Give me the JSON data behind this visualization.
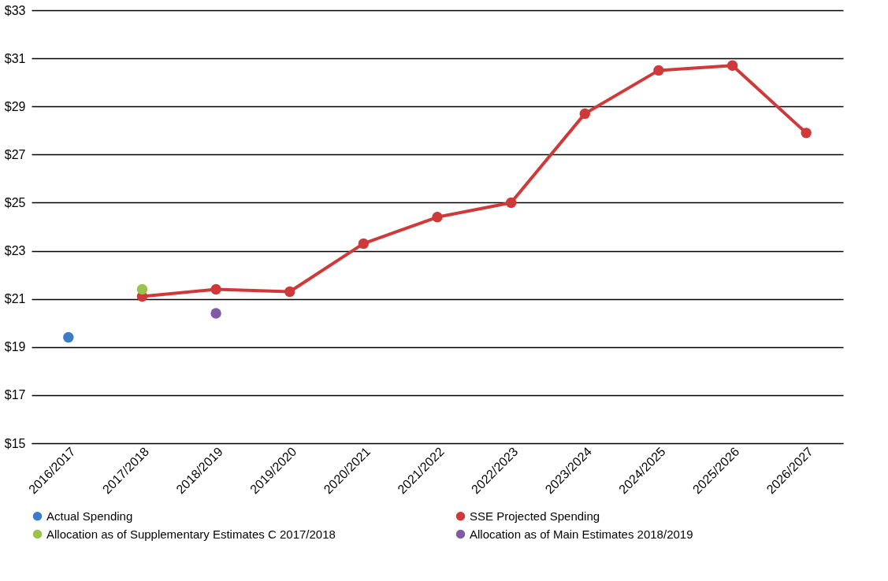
{
  "chart_data": {
    "type": "line",
    "categories": [
      "2016/2017",
      "2017/2018",
      "2018/2019",
      "2019/2020",
      "2020/2021",
      "2021/2022",
      "2022/2023",
      "2023/2024",
      "2024/2025",
      "2025/2026",
      "2026/2027"
    ],
    "series": [
      {
        "name": "Actual Spending",
        "type": "scatter",
        "color": "#3d7cc9",
        "values": [
          19.4,
          null,
          null,
          null,
          null,
          null,
          null,
          null,
          null,
          null,
          null
        ]
      },
      {
        "name": "SSE Projected Spending",
        "color": "#d0393a",
        "values": [
          null,
          21.1,
          21.4,
          21.3,
          23.3,
          24.4,
          25.0,
          28.7,
          30.5,
          30.7,
          27.9
        ]
      },
      {
        "name": "Allocation as of Supplementary Estimates C 2017/2018",
        "type": "scatter",
        "color": "#9bc24b",
        "values": [
          null,
          21.4,
          null,
          null,
          null,
          null,
          null,
          null,
          null,
          null,
          null
        ]
      },
      {
        "name": "Allocation as of Main Estimates 2018/2019",
        "type": "scatter",
        "color": "#7f5aa6",
        "values": [
          null,
          null,
          20.4,
          null,
          null,
          null,
          null,
          null,
          null,
          null,
          null
        ]
      }
    ],
    "ylim": [
      15,
      33
    ],
    "yticks": [
      {
        "value": 15,
        "label": "$15"
      },
      {
        "value": 17,
        "label": "$17"
      },
      {
        "value": 19,
        "label": "$19"
      },
      {
        "value": 21,
        "label": "$21"
      },
      {
        "value": 23,
        "label": "$23"
      },
      {
        "value": 25,
        "label": "$25"
      },
      {
        "value": 27,
        "label": "$27"
      },
      {
        "value": 29,
        "label": "$29"
      },
      {
        "value": 31,
        "label": "$31"
      },
      {
        "value": 33,
        "label": "$33"
      }
    ],
    "grid": "y",
    "legend": "bottom",
    "marker": "circle",
    "line_style": "solid"
  }
}
